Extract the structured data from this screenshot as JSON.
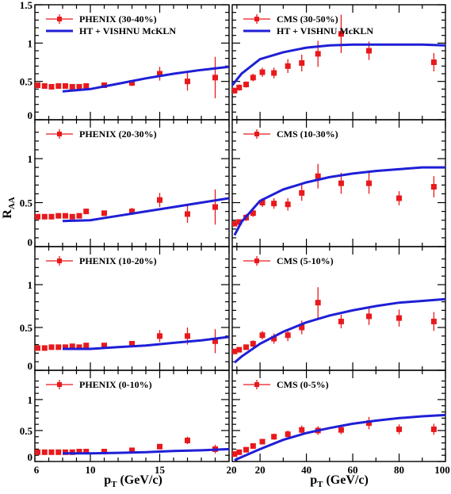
{
  "figure": {
    "y_axis_title": "R",
    "y_axis_title_sub": "AA",
    "left_x_axis_title": "p",
    "left_x_axis_title_sub": "T",
    "left_x_axis_title_unit": " (GeV/c)",
    "right_x_axis_title": "p",
    "right_x_axis_title_sub": "T",
    "right_x_axis_title_unit": " (GeV/c)"
  },
  "colors": {
    "data": "#e8191c",
    "model": "#1f1fd6",
    "axes": "#000000"
  },
  "chart_data": [
    {
      "type": "scatter",
      "panel": "PHENIX 30-40%",
      "xlim": [
        6,
        20
      ],
      "ylim": [
        0,
        1.5
      ],
      "x_ticks": [],
      "x_tick_labels": [],
      "y_ticks": [
        0,
        0.5,
        1,
        1.5
      ],
      "y_tick_labels": [
        "0",
        "0.5",
        "1",
        "1.5"
      ],
      "legend": [
        {
          "label": "PHENIX (30-40%)",
          "marker": "square-errorbar"
        },
        {
          "label": "HT + VISHNU McKLN",
          "marker": "line"
        }
      ],
      "series": [
        {
          "name": "PHENIX (30-40%)",
          "kind": "points",
          "x": [
            6.2,
            6.7,
            7.2,
            7.7,
            8.2,
            8.7,
            9.2,
            9.7,
            11,
            13,
            15,
            17,
            19
          ],
          "y": [
            0.45,
            0.44,
            0.43,
            0.44,
            0.44,
            0.43,
            0.43,
            0.44,
            0.45,
            0.48,
            0.6,
            0.5,
            0.55
          ],
          "err": [
            0.03,
            0.02,
            0.02,
            0.02,
            0.02,
            0.02,
            0.02,
            0.03,
            0.03,
            0.04,
            0.09,
            0.12,
            0.27
          ]
        },
        {
          "name": "HT + VISHNU McKLN",
          "kind": "line",
          "x": [
            8,
            10,
            12,
            14,
            16,
            18,
            20
          ],
          "y": [
            0.37,
            0.4,
            0.47,
            0.54,
            0.6,
            0.65,
            0.69
          ]
        }
      ]
    },
    {
      "type": "scatter",
      "panel": "CMS 30-50%",
      "xlim": [
        8,
        100
      ],
      "ylim": [
        0,
        1.5
      ],
      "x_ticks": [],
      "x_tick_labels": [],
      "y_ticks": [
        0,
        0.5,
        1,
        1.5
      ],
      "y_tick_labels": [],
      "legend": [
        {
          "label": "CMS (30-50%)",
          "marker": "square-errorbar"
        },
        {
          "label": "HT + VISHNU McKLN",
          "marker": "line"
        }
      ],
      "series": [
        {
          "name": "CMS (30-50%)",
          "kind": "points",
          "x": [
            9,
            11,
            14,
            17,
            21,
            26,
            32,
            38,
            45,
            55,
            67,
            95
          ],
          "y": [
            0.38,
            0.42,
            0.46,
            0.55,
            0.62,
            0.61,
            0.7,
            0.74,
            0.86,
            1.12,
            0.9,
            0.75
          ],
          "err": [
            0.04,
            0.04,
            0.04,
            0.05,
            0.06,
            0.07,
            0.09,
            0.11,
            0.17,
            0.25,
            0.12,
            0.12
          ]
        },
        {
          "name": "HT + VISHNU McKLN",
          "kind": "line",
          "x": [
            8,
            12,
            20,
            30,
            40,
            50,
            60,
            70,
            80,
            90,
            100
          ],
          "y": [
            0.45,
            0.6,
            0.79,
            0.88,
            0.94,
            0.97,
            0.98,
            0.98,
            0.98,
            0.98,
            0.97
          ]
        }
      ]
    },
    {
      "type": "scatter",
      "panel": "PHENIX 20-30%",
      "xlim": [
        6,
        20
      ],
      "ylim": [
        0,
        1.5
      ],
      "x_ticks": [],
      "x_tick_labels": [],
      "y_ticks": [
        0,
        0.5,
        1
      ],
      "y_tick_labels": [
        "0",
        "0.5",
        "1"
      ],
      "legend": [
        {
          "label": "PHENIX (20-30%)",
          "marker": "square-errorbar"
        }
      ],
      "series": [
        {
          "name": "PHENIX (20-30%)",
          "kind": "points",
          "x": [
            6.2,
            6.7,
            7.2,
            7.7,
            8.2,
            8.7,
            9.2,
            9.7,
            11,
            13,
            15,
            17,
            19
          ],
          "y": [
            0.34,
            0.34,
            0.34,
            0.35,
            0.35,
            0.34,
            0.35,
            0.4,
            0.38,
            0.4,
            0.53,
            0.37,
            0.45
          ],
          "err": [
            0.03,
            0.02,
            0.02,
            0.02,
            0.02,
            0.02,
            0.02,
            0.03,
            0.03,
            0.04,
            0.08,
            0.1,
            0.2
          ]
        },
        {
          "name": "HT + VISHNU McKLN",
          "kind": "line",
          "x": [
            8,
            10,
            12,
            14,
            16,
            18,
            20
          ],
          "y": [
            0.29,
            0.3,
            0.35,
            0.4,
            0.45,
            0.5,
            0.55
          ]
        }
      ]
    },
    {
      "type": "scatter",
      "panel": "CMS 10-30%",
      "xlim": [
        8,
        100
      ],
      "ylim": [
        0,
        1.5
      ],
      "x_ticks": [],
      "x_tick_labels": [],
      "y_ticks": [
        0,
        0.5,
        1
      ],
      "y_tick_labels": [],
      "legend": [
        {
          "label": "CMS (10-30%)",
          "marker": "square-errorbar"
        }
      ],
      "series": [
        {
          "name": "CMS (10-30%)",
          "kind": "points",
          "x": [
            9,
            11,
            14,
            17,
            21,
            26,
            32,
            38,
            45,
            55,
            67,
            80,
            95
          ],
          "y": [
            0.26,
            0.28,
            0.33,
            0.38,
            0.5,
            0.49,
            0.48,
            0.61,
            0.8,
            0.72,
            0.72,
            0.55,
            0.68
          ],
          "err": [
            0.03,
            0.03,
            0.04,
            0.04,
            0.05,
            0.06,
            0.07,
            0.09,
            0.14,
            0.12,
            0.12,
            0.08,
            0.12
          ]
        },
        {
          "name": "HT + VISHNU McKLN",
          "kind": "line",
          "x": [
            9,
            12,
            20,
            30,
            40,
            50,
            60,
            70,
            80,
            90,
            100
          ],
          "y": [
            0.13,
            0.28,
            0.52,
            0.65,
            0.73,
            0.79,
            0.83,
            0.86,
            0.88,
            0.9,
            0.9
          ]
        }
      ]
    },
    {
      "type": "scatter",
      "panel": "PHENIX 10-20%",
      "xlim": [
        6,
        20
      ],
      "ylim": [
        0,
        1.5
      ],
      "x_ticks": [],
      "x_tick_labels": [],
      "y_ticks": [
        0,
        0.5,
        1
      ],
      "y_tick_labels": [
        "0",
        "0.5",
        "1"
      ],
      "legend": [
        {
          "label": "PHENIX (10-20%)",
          "marker": "square-errorbar"
        }
      ],
      "series": [
        {
          "name": "PHENIX (10-20%)",
          "kind": "points",
          "x": [
            6.2,
            6.7,
            7.2,
            7.7,
            8.2,
            8.7,
            9.2,
            9.7,
            11,
            13,
            15,
            17,
            19
          ],
          "y": [
            0.26,
            0.26,
            0.27,
            0.27,
            0.27,
            0.28,
            0.27,
            0.29,
            0.29,
            0.31,
            0.4,
            0.4,
            0.34
          ],
          "err": [
            0.02,
            0.02,
            0.02,
            0.02,
            0.02,
            0.02,
            0.02,
            0.03,
            0.03,
            0.03,
            0.07,
            0.1,
            0.14
          ]
        },
        {
          "name": "HT + VISHNU McKLN",
          "kind": "line",
          "x": [
            8,
            10,
            12,
            14,
            16,
            18,
            20
          ],
          "y": [
            0.25,
            0.25,
            0.27,
            0.29,
            0.32,
            0.35,
            0.39
          ]
        }
      ]
    },
    {
      "type": "scatter",
      "panel": "CMS 5-10%",
      "xlim": [
        8,
        100
      ],
      "ylim": [
        0,
        1.5
      ],
      "x_ticks": [],
      "x_tick_labels": [],
      "y_ticks": [
        0,
        0.5,
        1
      ],
      "y_tick_labels": [],
      "legend": [
        {
          "label": "CMS (5-10%)",
          "marker": "square-errorbar"
        }
      ],
      "series": [
        {
          "name": "CMS (5-10%)",
          "kind": "points",
          "x": [
            9,
            11,
            14,
            17,
            21,
            26,
            32,
            38,
            45,
            55,
            67,
            80,
            95
          ],
          "y": [
            0.22,
            0.24,
            0.27,
            0.31,
            0.41,
            0.37,
            0.41,
            0.5,
            0.79,
            0.57,
            0.63,
            0.61,
            0.57
          ],
          "err": [
            0.03,
            0.03,
            0.03,
            0.04,
            0.05,
            0.06,
            0.07,
            0.08,
            0.18,
            0.08,
            0.1,
            0.1,
            0.11
          ]
        },
        {
          "name": "HT + VISHNU McKLN",
          "kind": "line",
          "x": [
            9,
            12,
            20,
            30,
            40,
            50,
            60,
            70,
            80,
            90,
            100
          ],
          "y": [
            0.09,
            0.16,
            0.31,
            0.45,
            0.56,
            0.64,
            0.7,
            0.75,
            0.79,
            0.81,
            0.83
          ]
        }
      ]
    },
    {
      "type": "scatter",
      "panel": "PHENIX 0-10%",
      "xlim": [
        6,
        20
      ],
      "ylim": [
        0,
        1.5
      ],
      "x_ticks": [
        6,
        10,
        15,
        20
      ],
      "x_tick_labels": [
        "6",
        "10",
        "15",
        "20"
      ],
      "y_ticks": [
        0,
        0.5,
        1
      ],
      "y_tick_labels": [
        "0",
        "0.5",
        "1"
      ],
      "legend": [
        {
          "label": "PHENIX (0-10%)",
          "marker": "square-errorbar"
        }
      ],
      "series": [
        {
          "name": "PHENIX (0-10%)",
          "kind": "points",
          "x": [
            6.2,
            6.7,
            7.2,
            7.7,
            8.2,
            8.7,
            9.2,
            9.7,
            11,
            13,
            15,
            17,
            19
          ],
          "y": [
            0.15,
            0.15,
            0.15,
            0.15,
            0.15,
            0.15,
            0.16,
            0.16,
            0.16,
            0.18,
            0.24,
            0.34,
            0.2
          ],
          "err": [
            0.01,
            0.01,
            0.01,
            0.01,
            0.01,
            0.01,
            0.01,
            0.02,
            0.02,
            0.02,
            0.04,
            0.06,
            0.07
          ]
        },
        {
          "name": "HT + VISHNU McKLN",
          "kind": "line",
          "x": [
            8,
            10,
            12,
            14,
            16,
            18,
            20
          ],
          "y": [
            0.13,
            0.13,
            0.14,
            0.15,
            0.17,
            0.18,
            0.2
          ]
        }
      ]
    },
    {
      "type": "scatter",
      "panel": "CMS 0-5%",
      "xlim": [
        8,
        100
      ],
      "ylim": [
        0,
        1.5
      ],
      "x_ticks": [
        20,
        40,
        60,
        80,
        100
      ],
      "x_tick_labels": [
        "20",
        "40",
        "60",
        "80",
        "100"
      ],
      "y_ticks": [
        0,
        0.5,
        1
      ],
      "y_tick_labels": [],
      "legend": [
        {
          "label": "CMS (0-5%)",
          "marker": "square-errorbar"
        }
      ],
      "series": [
        {
          "name": "CMS (0-5%)",
          "kind": "points",
          "x": [
            9,
            11,
            14,
            17,
            21,
            26,
            32,
            38,
            45,
            55,
            67,
            80,
            95
          ],
          "y": [
            0.12,
            0.15,
            0.19,
            0.25,
            0.32,
            0.4,
            0.44,
            0.51,
            0.5,
            0.51,
            0.62,
            0.52,
            0.52
          ],
          "err": [
            0.02,
            0.02,
            0.03,
            0.03,
            0.04,
            0.05,
            0.06,
            0.07,
            0.07,
            0.07,
            0.1,
            0.08,
            0.09
          ]
        },
        {
          "name": "HT + VISHNU McKLN",
          "kind": "line",
          "x": [
            9,
            12,
            20,
            30,
            40,
            50,
            60,
            70,
            80,
            90,
            100
          ],
          "y": [
            0.02,
            0.07,
            0.2,
            0.35,
            0.46,
            0.54,
            0.61,
            0.66,
            0.7,
            0.73,
            0.75
          ]
        }
      ]
    }
  ]
}
